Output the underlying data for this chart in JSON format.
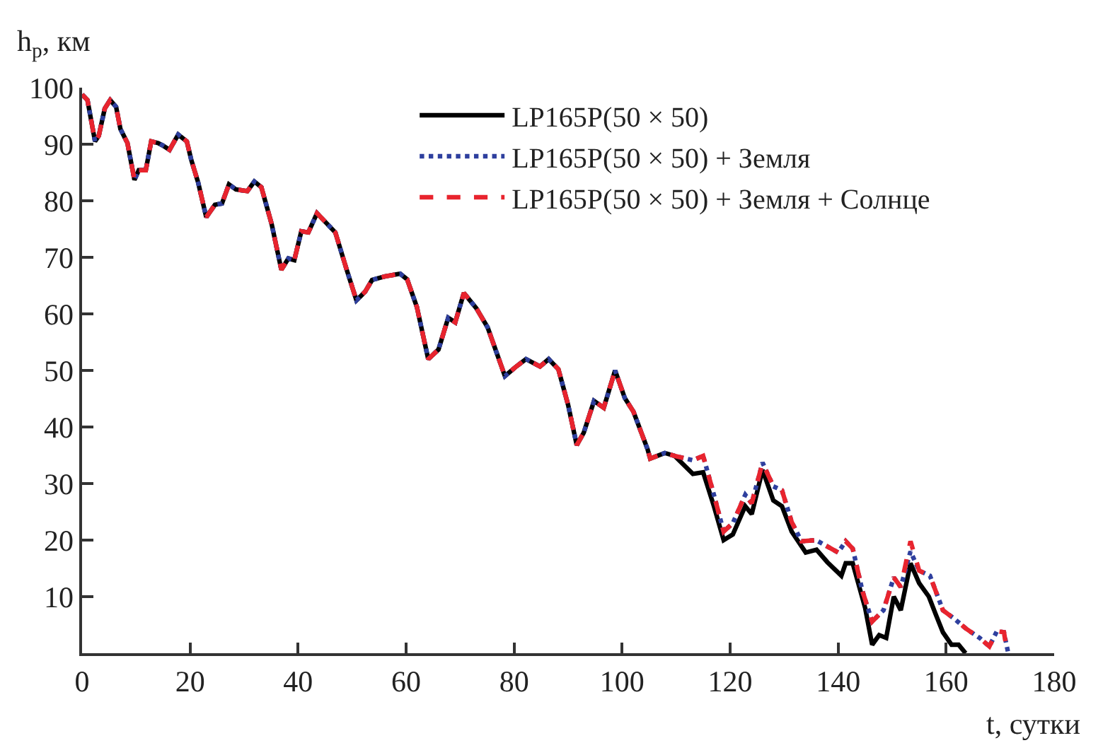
{
  "chart_data": {
    "type": "line",
    "xlabel": "t, сутки",
    "ylabel": "h$_{р}$, км",
    "xlim": [
      0,
      180
    ],
    "xticks": [
      0,
      20,
      40,
      60,
      80,
      100,
      120,
      140,
      160,
      180
    ],
    "ylim": [
      0,
      100
    ],
    "yticks": [
      10,
      20,
      30,
      40,
      50,
      60,
      70,
      80,
      90,
      100
    ],
    "legend": "top right",
    "marker": "none",
    "series": [
      {
        "name": "LP165P(50 × 50)",
        "color": "#000000",
        "line_style": "solid",
        "x": [
          0,
          1,
          2.4,
          3.1,
          4.2,
          5.2,
          6.3,
          7.1,
          8.4,
          9.7,
          10.5,
          11.8,
          12.8,
          14.1,
          14.9,
          16.2,
          17.8,
          19.4,
          20.2,
          21.5,
          23,
          24.6,
          25.9,
          27.2,
          28.5,
          30.6,
          31.9,
          33.2,
          35.1,
          36.9,
          38.2,
          39.3,
          40.6,
          41.9,
          43.5,
          45,
          46.9,
          49,
          50.8,
          52.4,
          53.7,
          56,
          58.9,
          60.2,
          62,
          64.1,
          66,
          67.8,
          69.1,
          70.7,
          73,
          75.1,
          78.3,
          80.4,
          82.2,
          84.8,
          86.4,
          88.2,
          90,
          91.6,
          92.9,
          94.8,
          96.6,
          98.7,
          100.5,
          102.1,
          104.7,
          105.2,
          107.9,
          109.7,
          113.1,
          115,
          117,
          118.8,
          120.5,
          122.8,
          124,
          126,
          128,
          129.6,
          131.4,
          134,
          136,
          138,
          140.6,
          141.4,
          142.7,
          145,
          146.3,
          147.6,
          148.9,
          150.3,
          151.6,
          153.4,
          155,
          156.8,
          158.1,
          159.4,
          161,
          162.3,
          163.6
        ],
        "values": [
          98.8,
          97.8,
          90.5,
          91.5,
          96.3,
          97.8,
          96.6,
          92.7,
          90.2,
          83.7,
          85.4,
          85.4,
          90.5,
          90.2,
          89.8,
          89,
          91.7,
          90.5,
          87.3,
          83.2,
          77.1,
          79.3,
          79.5,
          82.9,
          82,
          81.7,
          83.4,
          82.4,
          75.9,
          67.8,
          69.8,
          69.5,
          74.6,
          74.4,
          77.8,
          76.3,
          74.4,
          67.8,
          62.4,
          63.9,
          66,
          66.6,
          67.1,
          66.1,
          61.2,
          52,
          53.7,
          59.3,
          58.5,
          63.7,
          61,
          57.6,
          49,
          50.7,
          52,
          50.7,
          52,
          50.2,
          43.9,
          36.8,
          39,
          44.6,
          43.4,
          50,
          45.1,
          42.7,
          36.1,
          34.4,
          35.4,
          34.9,
          31.7,
          32,
          26,
          20,
          21,
          26,
          24.6,
          32.4,
          27,
          26,
          21.5,
          17.8,
          18.3,
          16.1,
          13.7,
          15.9,
          15.9,
          8,
          1.5,
          3.2,
          2.7,
          10,
          7.6,
          15.9,
          12.4,
          10,
          6.8,
          3.7,
          1.5,
          1.5,
          0
        ]
      },
      {
        "name": "LP165P(50 × 50) + Земля",
        "color": "#2e3f9e",
        "line_style": "dotted",
        "x": [
          0,
          1,
          2.4,
          3.1,
          4.2,
          5.2,
          6.3,
          7.1,
          8.4,
          9.7,
          10.5,
          11.8,
          12.8,
          14.1,
          14.9,
          16.2,
          17.8,
          19.4,
          20.2,
          21.5,
          23,
          24.6,
          25.9,
          27.2,
          28.5,
          30.6,
          31.9,
          33.2,
          35.1,
          36.9,
          38.2,
          39.3,
          40.6,
          41.9,
          43.5,
          45,
          46.9,
          49,
          50.8,
          52.4,
          53.7,
          56,
          58.9,
          60.2,
          62,
          64.1,
          66,
          67.8,
          69.1,
          70.7,
          73,
          75.1,
          78.3,
          80.4,
          82.2,
          84.8,
          86.4,
          88.2,
          90,
          91.6,
          92.9,
          94.8,
          96.6,
          98.7,
          100.5,
          102.1,
          104.7,
          105.2,
          107.9,
          109.7,
          113.1,
          115,
          117,
          118.8,
          120.5,
          122.8,
          124,
          126,
          128,
          129.6,
          131.4,
          133.2,
          135.9,
          140,
          141.4,
          142.7,
          144.5,
          146.3,
          148.4,
          150.3,
          151.6,
          153.4,
          155,
          157,
          159.4,
          161.5,
          163.6,
          166.2,
          168,
          169.4,
          170.7,
          171.5
        ],
        "values": [
          98.8,
          97.8,
          90.5,
          91.5,
          96.3,
          97.8,
          96.6,
          92.7,
          90.2,
          83.7,
          85.4,
          85.4,
          90.5,
          90.2,
          89.8,
          89,
          91.7,
          90.5,
          87.3,
          83.2,
          77.1,
          79.3,
          79.5,
          82.9,
          82,
          81.7,
          83.4,
          82.4,
          75.9,
          67.8,
          69.8,
          69.5,
          74.6,
          74.4,
          77.8,
          76.3,
          74.4,
          67.8,
          62.4,
          63.9,
          66,
          66.6,
          67.1,
          66.1,
          61.2,
          52,
          53.7,
          59.3,
          58.5,
          63.7,
          61,
          57.6,
          49,
          50.7,
          52,
          50.7,
          52,
          50.2,
          43.9,
          36.8,
          39,
          44.6,
          43.4,
          50,
          45.1,
          42.7,
          36.1,
          34.4,
          35.4,
          34.9,
          34.1,
          34.9,
          28,
          21.5,
          23,
          28,
          26.5,
          33.7,
          29.5,
          28.8,
          23.2,
          19.8,
          20,
          17.8,
          19.8,
          18.5,
          11,
          5.6,
          7.6,
          13.4,
          11.7,
          18,
          14.6,
          13.7,
          7.6,
          6.1,
          4.4,
          2.7,
          1.2,
          3.9,
          3.7,
          0
        ]
      },
      {
        "name": "LP165P(50 × 50) + Земля + Солнце",
        "color": "#e8242e",
        "line_style": "dashed",
        "x": [
          0,
          1,
          2.4,
          3.1,
          4.2,
          5.2,
          6.3,
          7.1,
          8.4,
          9.7,
          10.5,
          11.8,
          12.8,
          14.1,
          14.9,
          16.2,
          17.8,
          19.4,
          20.2,
          21.5,
          23,
          24.6,
          25.9,
          27.2,
          28.5,
          30.6,
          31.9,
          33.2,
          35.1,
          36.9,
          38.2,
          39.3,
          40.6,
          41.9,
          43.5,
          45,
          46.9,
          49,
          50.8,
          52.4,
          53.7,
          56,
          58.9,
          60.2,
          62,
          64.1,
          66,
          67.8,
          69.1,
          70.7,
          73,
          75.1,
          78.3,
          80.4,
          82.2,
          84.8,
          86.4,
          88.2,
          90,
          91.6,
          92.9,
          94.8,
          96.6,
          98.7,
          100.5,
          102.1,
          104.7,
          105.2,
          107.9,
          109.7,
          113.1,
          115,
          117,
          118.8,
          120.5,
          122.8,
          124,
          126,
          128,
          129.6,
          131.4,
          133.2,
          135.9,
          140,
          141.4,
          142.7,
          144.5,
          146.3,
          148.4,
          150.3,
          151.6,
          153.4,
          155,
          157,
          159.4,
          161.5,
          163.6,
          166.2,
          168,
          169.4,
          170.7,
          171
        ],
        "values": [
          98.8,
          97.8,
          90.5,
          91.5,
          96.3,
          97.8,
          96.6,
          92.7,
          90.2,
          83.7,
          85.4,
          85.4,
          90.5,
          90.2,
          89.8,
          89,
          91.7,
          90.5,
          87.3,
          83.2,
          77.1,
          79.3,
          79.5,
          82.9,
          82,
          81.7,
          83.4,
          82.4,
          75.9,
          67.8,
          69.8,
          69.5,
          74.6,
          74.4,
          77.8,
          76.3,
          74.4,
          67.8,
          62.4,
          63.9,
          66,
          66.6,
          67.1,
          66.1,
          61.2,
          52,
          53.7,
          59.3,
          58.5,
          63.7,
          61,
          57.6,
          49,
          50.7,
          52,
          50.7,
          52,
          50.2,
          43.9,
          36.8,
          39,
          44.6,
          43.4,
          50,
          45.1,
          42.7,
          36.1,
          34.4,
          35.4,
          34.9,
          34.1,
          34.9,
          28,
          21.5,
          23,
          28,
          26.5,
          33.7,
          29.5,
          28.8,
          23.2,
          19.8,
          20,
          17.8,
          19.8,
          18.5,
          11,
          5.6,
          7.6,
          13.4,
          11.7,
          19.8,
          14.6,
          13.7,
          7.6,
          6.1,
          4.4,
          2.7,
          1.2,
          3.9,
          3.7,
          2
        ]
      }
    ]
  }
}
